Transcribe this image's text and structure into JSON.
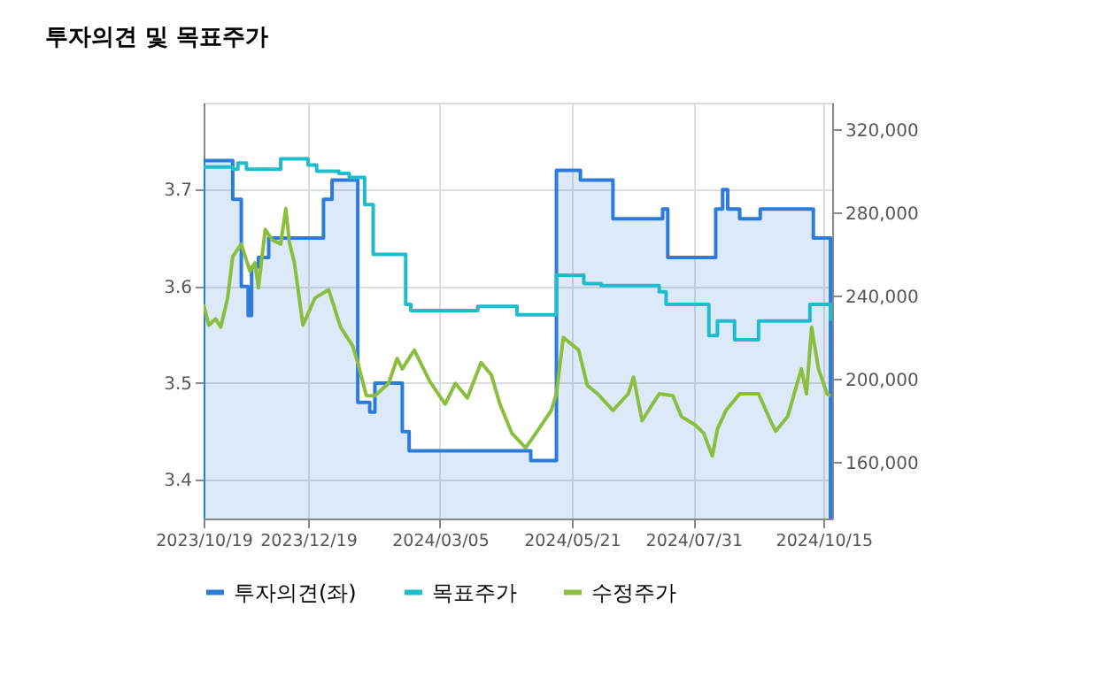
{
  "chart_data": {
    "type": "line",
    "title": "투자의견 및 목표주가",
    "xlim": [
      "2023-10-19",
      "2024-10-20"
    ],
    "xticks": [
      {
        "value": "2023-10-19",
        "label": "2023/10/19"
      },
      {
        "value": "2023-12-19",
        "label": "2023/12/19"
      },
      {
        "value": "2024-03-05",
        "label": "2024/03/05"
      },
      {
        "value": "2024-05-21",
        "label": "2024/05/21"
      },
      {
        "value": "2024-07-31",
        "label": "2024/07/31"
      },
      {
        "value": "2024-10-15",
        "label": "2024/10/15"
      }
    ],
    "ylim": [
      3.36,
      3.79
    ],
    "yticks": [
      3.4,
      3.5,
      3.6,
      3.7
    ],
    "y2lim": [
      133000,
      333000
    ],
    "y2ticks": [
      {
        "value": 160000,
        "label": "160,000"
      },
      {
        "value": 200000,
        "label": "200,000"
      },
      {
        "value": 240000,
        "label": "240,000"
      },
      {
        "value": 280000,
        "label": "280,000"
      },
      {
        "value": 320000,
        "label": "320,000"
      }
    ],
    "grid": true,
    "legend": "bottom",
    "series": [
      {
        "name": "투자의견(좌)",
        "type": "area",
        "color": "#2e7bd9",
        "x": [
          "2023-10-19",
          "2023-11-05",
          "2023-11-10",
          "2023-11-14",
          "2023-11-16",
          "2023-11-20",
          "2023-11-26",
          "2023-12-28",
          "2024-01-02",
          "2024-01-17",
          "2024-01-24",
          "2024-01-27",
          "2024-02-12",
          "2024-02-16",
          "2024-04-27",
          "2024-05-12",
          "2024-05-26",
          "2024-06-14",
          "2024-07-13",
          "2024-07-16",
          "2024-08-13",
          "2024-08-17",
          "2024-08-20",
          "2024-08-27",
          "2024-09-08",
          "2024-10-09",
          "2024-10-19"
        ],
        "values": [
          3.73,
          3.69,
          3.6,
          3.57,
          3.62,
          3.63,
          3.65,
          3.69,
          3.71,
          3.48,
          3.47,
          3.5,
          3.45,
          3.43,
          3.42,
          3.72,
          3.71,
          3.67,
          3.68,
          3.63,
          3.68,
          3.7,
          3.68,
          3.67,
          3.68,
          3.65,
          3.63
        ]
      },
      {
        "name": "목표주가",
        "type": "step",
        "axis": "y2",
        "color": "#1fbccc",
        "x": [
          "2023-10-19",
          "2023-11-05",
          "2023-11-08",
          "2023-11-13",
          "2023-12-03",
          "2023-12-19",
          "2023-12-24",
          "2024-01-06",
          "2024-01-12",
          "2024-01-21",
          "2024-01-26",
          "2024-02-14",
          "2024-02-17",
          "2024-03-27",
          "2024-04-19",
          "2024-05-12",
          "2024-05-28",
          "2024-06-07",
          "2024-07-11",
          "2024-07-15",
          "2024-08-09",
          "2024-08-14",
          "2024-08-24",
          "2024-09-07",
          "2024-10-07",
          "2024-10-19"
        ],
        "values": [
          302000,
          301000,
          304000,
          301000,
          306000,
          303000,
          300000,
          299000,
          297000,
          284000,
          260000,
          236000,
          233000,
          235000,
          231000,
          250000,
          246000,
          245000,
          242000,
          236000,
          221000,
          228000,
          219000,
          228000,
          236000,
          228000
        ]
      },
      {
        "name": "수정주가",
        "type": "line",
        "axis": "y2",
        "color": "#8bbd3f",
        "x": [
          "2023-10-19",
          "2023-10-22",
          "2023-10-26",
          "2023-10-29",
          "2023-11-02",
          "2023-11-05",
          "2023-11-10",
          "2023-11-15",
          "2023-11-18",
          "2023-11-20",
          "2023-11-24",
          "2023-11-28",
          "2023-12-03",
          "2023-12-06",
          "2023-12-08",
          "2023-12-11",
          "2023-12-16",
          "2023-12-23",
          "2023-12-31",
          "2024-01-07",
          "2024-01-14",
          "2024-01-17",
          "2024-01-22",
          "2024-01-27",
          "2024-02-04",
          "2024-02-09",
          "2024-02-12",
          "2024-02-19",
          "2024-02-28",
          "2024-03-08",
          "2024-03-14",
          "2024-03-21",
          "2024-03-29",
          "2024-04-04",
          "2024-04-09",
          "2024-04-16",
          "2024-04-24",
          "2024-04-30",
          "2024-05-09",
          "2024-05-12",
          "2024-05-16",
          "2024-05-25",
          "2024-05-30",
          "2024-06-05",
          "2024-06-14",
          "2024-06-23",
          "2024-06-26",
          "2024-07-01",
          "2024-07-11",
          "2024-07-19",
          "2024-07-24",
          "2024-08-01",
          "2024-08-06",
          "2024-08-11",
          "2024-08-14",
          "2024-08-19",
          "2024-08-27",
          "2024-09-07",
          "2024-09-14",
          "2024-09-17",
          "2024-09-24",
          "2024-10-02",
          "2024-10-05",
          "2024-10-08",
          "2024-10-12",
          "2024-10-17",
          "2024-10-19"
        ],
        "values": [
          236000,
          226000,
          229000,
          225000,
          239000,
          259000,
          265000,
          252000,
          256000,
          244000,
          272000,
          267000,
          265000,
          282000,
          266000,
          256000,
          226000,
          239000,
          243000,
          225000,
          216000,
          208000,
          192000,
          192000,
          198000,
          210000,
          205000,
          214000,
          199000,
          188000,
          198000,
          191000,
          208000,
          202000,
          188000,
          174000,
          167000,
          174000,
          185000,
          193000,
          220000,
          214000,
          197000,
          193000,
          185000,
          193000,
          201000,
          180000,
          193000,
          192000,
          182000,
          178000,
          174000,
          163000,
          176000,
          185000,
          193000,
          193000,
          180000,
          175000,
          182000,
          205000,
          193000,
          225000,
          205000,
          193000,
          192000
        ]
      }
    ]
  }
}
